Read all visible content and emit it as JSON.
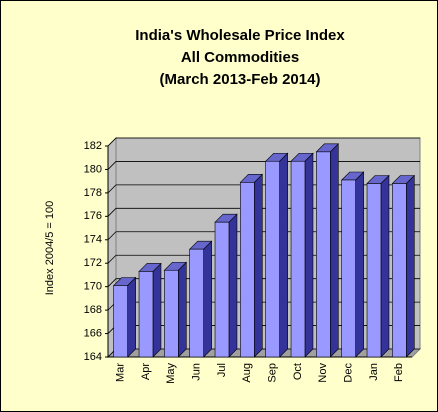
{
  "chart_data": {
    "type": "bar3d",
    "title": [
      "India's  Wholesale Price Index",
      "All Commodities",
      "(March 2013-Feb 2014)"
    ],
    "y_label": "Index 2004/5 = 100",
    "categories": [
      "Mar",
      "Apr",
      "May",
      "Jun",
      "Jul",
      "Aug",
      "Sep",
      "Oct",
      "Nov",
      "Dec",
      "Jan",
      "Feb"
    ],
    "values": [
      170.1,
      171.3,
      171.4,
      173.2,
      175.5,
      178.9,
      180.7,
      180.7,
      181.5,
      179.1,
      178.8,
      178.8
    ],
    "color": "#9999ff",
    "ylim": [
      164,
      182
    ],
    "yticks": [
      164,
      166,
      168,
      170,
      172,
      174,
      176,
      178,
      180,
      182
    ],
    "grid": true
  }
}
